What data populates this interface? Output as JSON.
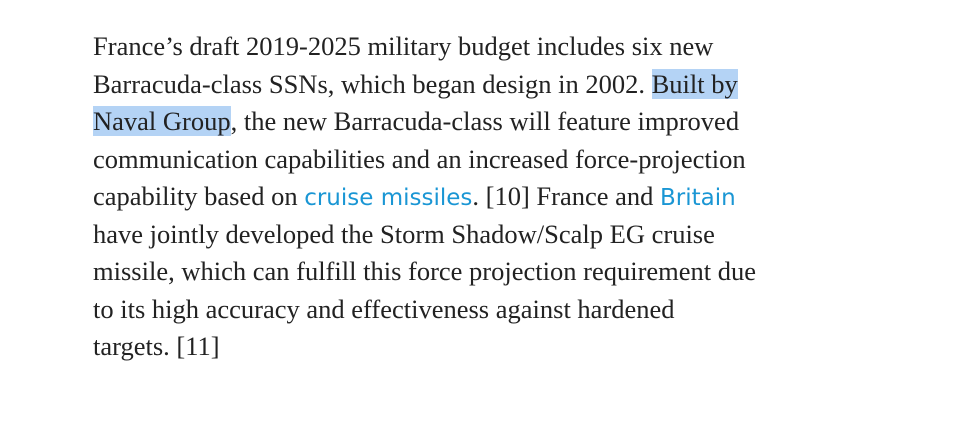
{
  "paragraph": {
    "lines": [
      [
        {
          "text": "France’s draft 2019-2025 military budget includes six new",
          "style": "plain"
        }
      ],
      [
        {
          "text": "Barracuda-class SSNs, which began design in 2002. ",
          "style": "plain"
        },
        {
          "text": "Built by",
          "style": "highlight"
        }
      ],
      [
        {
          "text": "Naval Group",
          "style": "highlight"
        },
        {
          "text": ", the new Barracuda-class will feature improved",
          "style": "plain"
        }
      ],
      [
        {
          "text": "communication capabilities and an increased force-projection",
          "style": "plain"
        }
      ],
      [
        {
          "text": "capability based on ",
          "style": "plain"
        },
        {
          "text": "cruise missiles",
          "style": "link"
        },
        {
          "text": ". [10] France and ",
          "style": "plain"
        },
        {
          "text": "Britain",
          "style": "link"
        }
      ],
      [
        {
          "text": "have jointly developed the Storm Shadow/Scalp EG cruise",
          "style": "plain"
        }
      ],
      [
        {
          "text": "missile, which can fulfill this force projection requirement due",
          "style": "plain"
        }
      ],
      [
        {
          "text": "to its high accuracy and effectiveness against hardened",
          "style": "plain"
        }
      ],
      [
        {
          "text": "targets. [11]",
          "style": "plain"
        }
      ]
    ]
  }
}
